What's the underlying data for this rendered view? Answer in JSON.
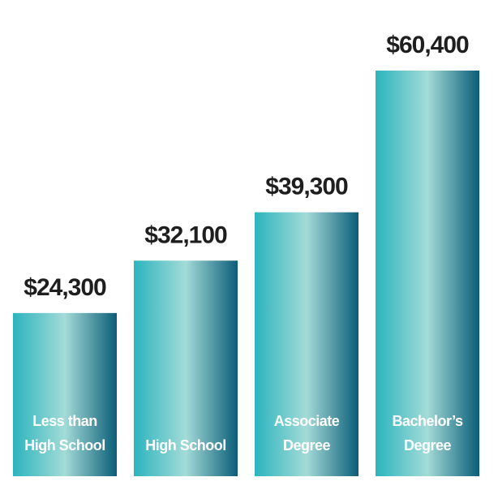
{
  "chart_data": {
    "type": "bar",
    "categories": [
      "Less than High School",
      "High School",
      "Associate Degree",
      "Bachelor’s Degree"
    ],
    "values": [
      24300,
      32100,
      39300,
      60400
    ],
    "value_labels": [
      "$24,300",
      "$32,100",
      "$39,300",
      "$60,400"
    ],
    "colors": [
      "#2bb4bd",
      "#a3dbd8",
      "#0b5d78"
    ]
  }
}
